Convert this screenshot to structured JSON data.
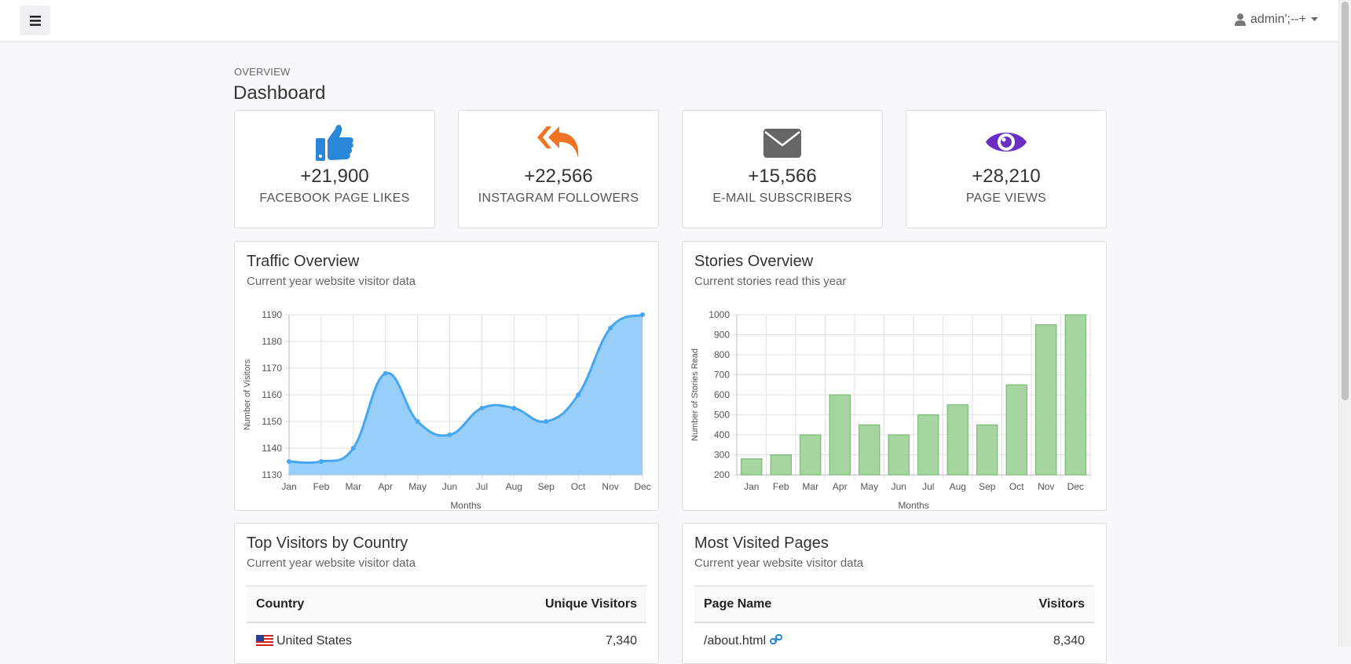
{
  "user": {
    "name": "admin';--+"
  },
  "header": {
    "overline": "OVERVIEW",
    "title": "Dashboard"
  },
  "stats": [
    {
      "value": "+21,900",
      "label": "FACEBOOK PAGE LIKES",
      "icon": "thumbs-up-icon",
      "color": "#2a87d8"
    },
    {
      "value": "+22,566",
      "label": "INSTAGRAM FOLLOWERS",
      "icon": "reply-all-icon",
      "color": "#f07424"
    },
    {
      "value": "+15,566",
      "label": "E-MAIL SUBSCRIBERS",
      "icon": "envelope-icon",
      "color": "#666666"
    },
    {
      "value": "+28,210",
      "label": "PAGE VIEWS",
      "icon": "eye-icon",
      "color": "#6a2fc2"
    }
  ],
  "traffic": {
    "title": "Traffic Overview",
    "subtitle": "Current year website visitor data"
  },
  "stories": {
    "title": "Stories Overview",
    "subtitle": "Current stories read this year"
  },
  "chart_data": [
    {
      "type": "area",
      "x": [
        "Jan",
        "Feb",
        "Mar",
        "Apr",
        "May",
        "Jun",
        "Jul",
        "Aug",
        "Sep",
        "Oct",
        "Nov",
        "Dec"
      ],
      "series": [
        {
          "values": [
            1135,
            1135,
            1140,
            1168,
            1150,
            1145,
            1155,
            1155,
            1150,
            1160,
            1185,
            1190
          ]
        }
      ],
      "xlabel": "Months",
      "ylabel": "Number of Visitors",
      "ylim": [
        1130,
        1190
      ],
      "yticks": [
        1130,
        1140,
        1150,
        1160,
        1170,
        1180,
        1190
      ],
      "grid": true,
      "color": "#46a6ef",
      "fill": "#98cffa"
    },
    {
      "type": "bar",
      "categories": [
        "Jan",
        "Feb",
        "Mar",
        "Apr",
        "May",
        "Jun",
        "Jul",
        "Aug",
        "Sep",
        "Oct",
        "Nov",
        "Dec"
      ],
      "values": [
        280,
        300,
        400,
        600,
        450,
        400,
        500,
        550,
        450,
        650,
        950,
        1000
      ],
      "xlabel": "Months",
      "ylabel": "Number of Stories Read",
      "ylim": [
        200,
        1000
      ],
      "yticks": [
        200,
        300,
        400,
        500,
        600,
        700,
        800,
        900,
        1000
      ],
      "grid": true,
      "color": "#a5d6a0",
      "stroke": "#6fb169"
    }
  ],
  "countries": {
    "title": "Top Visitors by Country",
    "subtitle": "Current year website visitor data",
    "columns": [
      "Country",
      "Unique Visitors"
    ],
    "rows": [
      {
        "country": "United States",
        "visitors": "7,340"
      }
    ]
  },
  "pages": {
    "title": "Most Visited Pages",
    "subtitle": "Current year website visitor data",
    "columns": [
      "Page Name",
      "Visitors"
    ],
    "rows": [
      {
        "page": "/about.html",
        "visitors": "8,340"
      }
    ]
  }
}
